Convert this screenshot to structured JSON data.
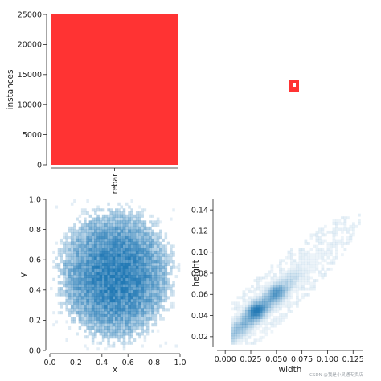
{
  "chart_data": [
    {
      "type": "bar",
      "categories": [
        "rebar"
      ],
      "values": [
        25000
      ],
      "xlabel": "",
      "ylabel": "instances",
      "ylim": [
        0,
        25000
      ],
      "yticks": [
        0,
        5000,
        10000,
        15000,
        20000,
        25000
      ],
      "ytick_labels": [
        "0",
        "5000",
        "10000",
        "15000",
        "20000",
        "25000"
      ],
      "bar_color": "#ff3333",
      "grid": false
    },
    {
      "type": "heatmap",
      "description_role": "label-box-overlay",
      "fill_color": "#ff3333",
      "inner_box_color": "#ffffff"
    },
    {
      "type": "heatmap",
      "xlabel": "x",
      "ylabel": "y",
      "xlim": [
        0,
        1
      ],
      "ylim": [
        0,
        1
      ],
      "xticks": [
        0.0,
        0.2,
        0.4,
        0.6,
        0.8,
        1.0
      ],
      "xtick_labels": [
        "0.0",
        "0.2",
        "0.4",
        "0.6",
        "0.8",
        "1.0"
      ],
      "yticks": [
        0.0,
        0.2,
        0.4,
        0.6,
        0.8,
        1.0
      ],
      "ytick_labels": [
        "0.0",
        "0.2",
        "0.4",
        "0.6",
        "0.8",
        "1.0"
      ],
      "center": [
        0.5,
        0.5
      ],
      "radius": 0.4,
      "color": "#1f77b4",
      "grid": false
    },
    {
      "type": "heatmap",
      "xlabel": "width",
      "ylabel": "height",
      "xlim": [
        -0.008,
        0.135
      ],
      "ylim": [
        0.01,
        0.15
      ],
      "xticks": [
        0.0,
        0.025,
        0.05,
        0.075,
        0.1,
        0.125
      ],
      "xtick_labels": [
        "0.000",
        "0.025",
        "0.050",
        "0.075",
        "0.100",
        "0.125"
      ],
      "yticks": [
        0.02,
        0.04,
        0.06,
        0.08,
        0.1,
        0.12,
        0.14
      ],
      "ytick_labels": [
        "0.02",
        "0.04",
        "0.06",
        "0.08",
        "0.10",
        "0.12",
        "0.14"
      ],
      "peak": [
        0.03,
        0.045
      ],
      "color": "#1f77b4",
      "grid": false
    }
  ],
  "watermark": "CSDN @我是小灵通专卖店"
}
